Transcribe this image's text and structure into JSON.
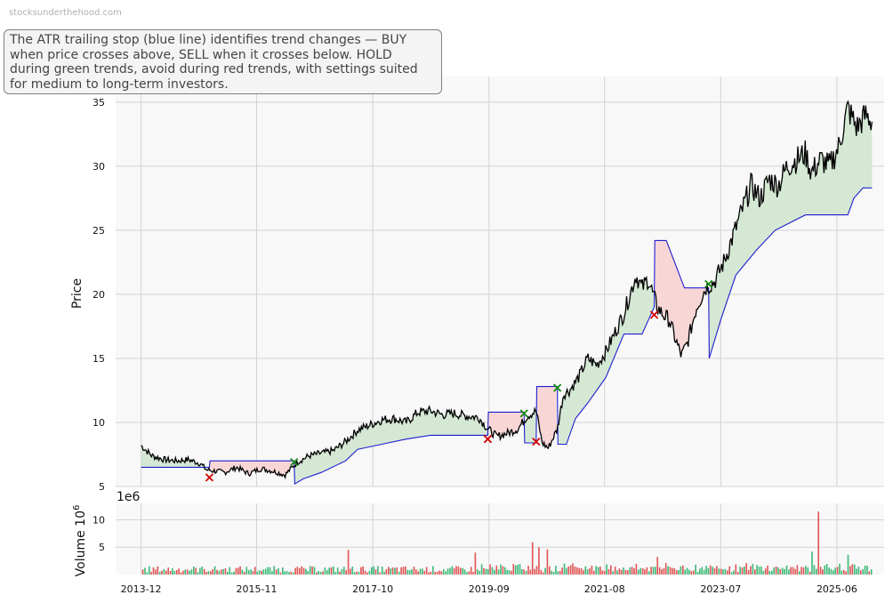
{
  "watermark": "stocksunderthehood.com",
  "note": "The ATR trailing stop (blue line) identifies trend changes — BUY when price crosses above, SELL when it crosses below. HOLD during green trends, avoid during red trends, with settings suited for medium to long-term investors.",
  "colors": {
    "price": "#000000",
    "stop": "#1f1fcf",
    "up_fill": "#d4e8d4",
    "down_fill": "#f8d6d6",
    "buy": "#1a8a1a",
    "sell": "#d40000",
    "vol_up": "#3cb878",
    "vol_down": "#e05454",
    "grid": "#d3d3d3",
    "panel": "#f8f8f8"
  },
  "chart_data": [
    {
      "type": "line",
      "ylabel": "Price",
      "ylim": [
        5,
        37
      ],
      "yticks": [
        5,
        10,
        15,
        20,
        25,
        30,
        35
      ],
      "xlim": [
        2013.5,
        2026.2
      ],
      "grid": true,
      "price": [
        [
          2013.92,
          8.2
        ],
        [
          2014.1,
          7.4
        ],
        [
          2014.3,
          7.1
        ],
        [
          2014.5,
          7.0
        ],
        [
          2014.7,
          7.1
        ],
        [
          2014.9,
          6.8
        ],
        [
          2015.0,
          6.3
        ],
        [
          2015.3,
          6.1
        ],
        [
          2015.5,
          6.5
        ],
        [
          2015.7,
          6.0
        ],
        [
          2015.9,
          6.4
        ],
        [
          2016.1,
          6.2
        ],
        [
          2016.3,
          5.9
        ],
        [
          2016.5,
          6.9
        ],
        [
          2016.7,
          7.4
        ],
        [
          2016.9,
          7.6
        ],
        [
          2017.1,
          7.8
        ],
        [
          2017.3,
          8.5
        ],
        [
          2017.5,
          9.4
        ],
        [
          2017.7,
          9.8
        ],
        [
          2017.9,
          10.2
        ],
        [
          2018.1,
          10.3
        ],
        [
          2018.3,
          10.0
        ],
        [
          2018.5,
          10.8
        ],
        [
          2018.7,
          10.9
        ],
        [
          2018.9,
          10.6
        ],
        [
          2019.1,
          10.7
        ],
        [
          2019.3,
          10.5
        ],
        [
          2019.5,
          10.4
        ],
        [
          2019.65,
          9.5
        ],
        [
          2019.8,
          8.9
        ],
        [
          2020.0,
          9.2
        ],
        [
          2020.15,
          9.5
        ],
        [
          2020.3,
          10.5
        ],
        [
          2020.45,
          10.9
        ],
        [
          2020.55,
          8.4
        ],
        [
          2020.65,
          8.0
        ],
        [
          2020.8,
          9.5
        ],
        [
          2020.9,
          12.2
        ],
        [
          2021.0,
          12.5
        ],
        [
          2021.15,
          13.5
        ],
        [
          2021.3,
          15.0
        ],
        [
          2021.45,
          14.5
        ],
        [
          2021.6,
          15.5
        ],
        [
          2021.75,
          17.0
        ],
        [
          2021.9,
          18.5
        ],
        [
          2022.0,
          20.0
        ],
        [
          2022.1,
          21.5
        ],
        [
          2022.2,
          20.5
        ],
        [
          2022.3,
          21.2
        ],
        [
          2022.45,
          19.0
        ],
        [
          2022.55,
          18.4
        ],
        [
          2022.65,
          18.0
        ],
        [
          2022.75,
          16.5
        ],
        [
          2022.85,
          15.2
        ],
        [
          2022.95,
          16.2
        ],
        [
          2023.1,
          19.0
        ],
        [
          2023.25,
          20.5
        ],
        [
          2023.4,
          21.0
        ],
        [
          2023.55,
          22.5
        ],
        [
          2023.7,
          24.5
        ],
        [
          2023.85,
          26.5
        ],
        [
          2024.0,
          28.5
        ],
        [
          2024.15,
          27.5
        ],
        [
          2024.3,
          29.0
        ],
        [
          2024.45,
          28.5
        ],
        [
          2024.6,
          30.0
        ],
        [
          2024.75,
          30.5
        ],
        [
          2024.9,
          31.0
        ],
        [
          2025.0,
          29.5
        ],
        [
          2025.15,
          30.5
        ],
        [
          2025.3,
          30.0
        ],
        [
          2025.45,
          31.5
        ],
        [
          2025.6,
          34.5
        ],
        [
          2025.75,
          33.0
        ],
        [
          2025.9,
          34.0
        ],
        [
          2026.0,
          33.5
        ]
      ],
      "stop": [
        [
          2013.92,
          6.5
        ],
        [
          2014.6,
          6.5
        ],
        [
          2015.05,
          6.5
        ],
        [
          2015.06,
          7.0
        ],
        [
          2016.45,
          7.0
        ],
        [
          2016.46,
          5.2
        ],
        [
          2016.6,
          5.6
        ],
        [
          2016.9,
          6.1
        ],
        [
          2017.3,
          7.0
        ],
        [
          2017.5,
          7.9
        ],
        [
          2017.9,
          8.3
        ],
        [
          2018.3,
          8.7
        ],
        [
          2018.7,
          9.0
        ],
        [
          2019.5,
          9.0
        ],
        [
          2019.65,
          9.0
        ],
        [
          2019.66,
          10.8
        ],
        [
          2020.25,
          10.8
        ],
        [
          2020.26,
          8.4
        ],
        [
          2020.45,
          8.4
        ],
        [
          2020.46,
          12.8
        ],
        [
          2020.8,
          12.8
        ],
        [
          2020.81,
          8.3
        ],
        [
          2020.95,
          8.3
        ],
        [
          2021.1,
          10.3
        ],
        [
          2021.3,
          11.5
        ],
        [
          2021.6,
          13.5
        ],
        [
          2021.9,
          16.9
        ],
        [
          2022.2,
          16.9
        ],
        [
          2022.4,
          19.0
        ],
        [
          2022.41,
          24.2
        ],
        [
          2022.6,
          24.2
        ],
        [
          2022.9,
          20.5
        ],
        [
          2023.3,
          20.5
        ],
        [
          2023.31,
          15.0
        ],
        [
          2023.5,
          18.0
        ],
        [
          2023.75,
          21.5
        ],
        [
          2024.1,
          23.5
        ],
        [
          2024.4,
          25.0
        ],
        [
          2024.9,
          26.2
        ],
        [
          2025.6,
          26.2
        ],
        [
          2025.7,
          27.5
        ],
        [
          2025.85,
          28.3
        ],
        [
          2026.0,
          28.3
        ]
      ],
      "fill_regions": [
        {
          "trend": "up",
          "from": 2013.92,
          "to": 2015.05
        },
        {
          "trend": "down",
          "from": 2015.05,
          "to": 2016.45
        },
        {
          "trend": "up",
          "from": 2016.45,
          "to": 2019.65
        },
        {
          "trend": "down",
          "from": 2019.65,
          "to": 2020.25
        },
        {
          "trend": "up",
          "from": 2020.25,
          "to": 2020.45
        },
        {
          "trend": "down",
          "from": 2020.45,
          "to": 2020.8
        },
        {
          "trend": "up",
          "from": 2020.8,
          "to": 2022.4
        },
        {
          "trend": "down",
          "from": 2022.4,
          "to": 2023.3
        },
        {
          "trend": "up",
          "from": 2023.3,
          "to": 2026.0
        }
      ],
      "signals": [
        {
          "type": "sell",
          "x": 2015.05,
          "y": 5.7
        },
        {
          "type": "buy",
          "x": 2016.45,
          "y": 6.9
        },
        {
          "type": "sell",
          "x": 2019.65,
          "y": 8.7
        },
        {
          "type": "buy",
          "x": 2020.25,
          "y": 10.7
        },
        {
          "type": "sell",
          "x": 2020.45,
          "y": 8.5
        },
        {
          "type": "buy",
          "x": 2020.8,
          "y": 12.7
        },
        {
          "type": "sell",
          "x": 2022.4,
          "y": 18.4
        },
        {
          "type": "buy",
          "x": 2023.3,
          "y": 20.8
        }
      ]
    },
    {
      "type": "bar",
      "ylabel": "Volume",
      "ylabel_unit": "10^6",
      "offset_text": "1e6",
      "ylim": [
        0,
        13
      ],
      "yticks": [
        5,
        10
      ],
      "spikes": [
        [
          2017.35,
          4.5
        ],
        [
          2019.45,
          4.0
        ],
        [
          2020.4,
          5.9
        ],
        [
          2020.5,
          5.0
        ],
        [
          2020.65,
          4.6
        ],
        [
          2022.45,
          3.2
        ],
        [
          2025.1,
          11.5
        ],
        [
          2025.0,
          4.2
        ],
        [
          2025.6,
          3.6
        ]
      ],
      "baseline_level": 1.2
    }
  ],
  "x_ticks": [
    "2013-12",
    "2015-11",
    "2017-10",
    "2019-09",
    "2021-08",
    "2023-07",
    "2025-06"
  ]
}
